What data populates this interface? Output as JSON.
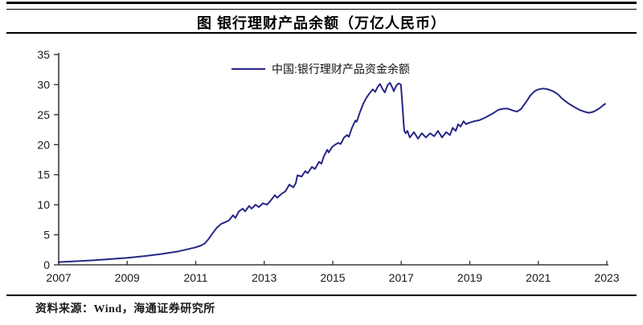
{
  "header": {
    "title": "图 银行理财产品余额（万亿人民币）"
  },
  "legend": {
    "label": "中国:银行理财产品资金余额"
  },
  "source": {
    "text": "资料来源：Wind，海通证券研究所"
  },
  "colors": {
    "series_line": "#262687",
    "axis": "#3a3a3a",
    "tick_label": "#1a1a1a"
  },
  "chart_data": {
    "type": "line",
    "title": "图 银行理财产品余额（万亿人民币）",
    "unit": "万亿人民币",
    "xlabel": "",
    "ylabel": "",
    "xlim": [
      2007,
      2023
    ],
    "ylim": [
      0,
      35
    ],
    "x_ticks": [
      "2007",
      "2009",
      "2011",
      "2013",
      "2015",
      "2017",
      "2019",
      "2021",
      "2023"
    ],
    "x_tick_values": [
      2007,
      2009,
      2011,
      2013,
      2015,
      2017,
      2019,
      2021,
      2023
    ],
    "y_ticks": [
      "0",
      "5",
      "10",
      "15",
      "20",
      "25",
      "30",
      "35"
    ],
    "y_tick_values": [
      0,
      5,
      10,
      15,
      20,
      25,
      30,
      35
    ],
    "grid": false,
    "legend_position": "top-center",
    "series": [
      {
        "name": "中国:银行理财产品资金余额",
        "color": "#262687",
        "points": [
          [
            2007.0,
            0.45
          ],
          [
            2007.52,
            0.6
          ],
          [
            2008.01,
            0.75
          ],
          [
            2008.5,
            0.95
          ],
          [
            2008.99,
            1.15
          ],
          [
            2009.51,
            1.45
          ],
          [
            2010.0,
            1.8
          ],
          [
            2010.5,
            2.25
          ],
          [
            2010.99,
            2.9
          ],
          [
            2011.15,
            3.2
          ],
          [
            2011.27,
            3.6
          ],
          [
            2011.39,
            4.4
          ],
          [
            2011.5,
            5.3
          ],
          [
            2011.62,
            6.2
          ],
          [
            2011.74,
            6.8
          ],
          [
            2011.86,
            7.1
          ],
          [
            2011.97,
            7.4
          ],
          [
            2012.09,
            8.25
          ],
          [
            2012.16,
            7.8
          ],
          [
            2012.26,
            8.9
          ],
          [
            2012.37,
            9.35
          ],
          [
            2012.44,
            8.9
          ],
          [
            2012.56,
            9.8
          ],
          [
            2012.63,
            9.35
          ],
          [
            2012.75,
            10.0
          ],
          [
            2012.84,
            9.6
          ],
          [
            2012.96,
            10.25
          ],
          [
            2013.08,
            10.0
          ],
          [
            2013.19,
            10.7
          ],
          [
            2013.31,
            11.6
          ],
          [
            2013.38,
            11.15
          ],
          [
            2013.5,
            11.8
          ],
          [
            2013.62,
            12.25
          ],
          [
            2013.73,
            13.35
          ],
          [
            2013.85,
            12.9
          ],
          [
            2013.92,
            13.6
          ],
          [
            2013.97,
            14.9
          ],
          [
            2014.09,
            14.7
          ],
          [
            2014.2,
            15.6
          ],
          [
            2014.27,
            15.25
          ],
          [
            2014.39,
            16.3
          ],
          [
            2014.48,
            15.95
          ],
          [
            2014.6,
            17.15
          ],
          [
            2014.67,
            16.85
          ],
          [
            2014.74,
            18.05
          ],
          [
            2014.84,
            19.15
          ],
          [
            2014.88,
            18.7
          ],
          [
            2014.98,
            19.6
          ],
          [
            2015.07,
            20.0
          ],
          [
            2015.16,
            20.3
          ],
          [
            2015.23,
            20.1
          ],
          [
            2015.33,
            21.2
          ],
          [
            2015.42,
            21.6
          ],
          [
            2015.47,
            21.3
          ],
          [
            2015.56,
            22.8
          ],
          [
            2015.66,
            24.0
          ],
          [
            2015.7,
            23.8
          ],
          [
            2015.8,
            25.5
          ],
          [
            2015.89,
            26.8
          ],
          [
            2015.98,
            27.8
          ],
          [
            2016.08,
            28.6
          ],
          [
            2016.17,
            29.2
          ],
          [
            2016.24,
            28.8
          ],
          [
            2016.31,
            29.6
          ],
          [
            2016.38,
            30.1
          ],
          [
            2016.45,
            29.3
          ],
          [
            2016.52,
            28.7
          ],
          [
            2016.6,
            29.9
          ],
          [
            2016.67,
            30.3
          ],
          [
            2016.74,
            29.5
          ],
          [
            2016.78,
            28.9
          ],
          [
            2016.85,
            29.8
          ],
          [
            2016.92,
            30.2
          ],
          [
            2016.99,
            30.0
          ],
          [
            2017.04,
            26.0
          ],
          [
            2017.07,
            23.5
          ],
          [
            2017.09,
            22.3
          ],
          [
            2017.13,
            21.9
          ],
          [
            2017.18,
            22.3
          ],
          [
            2017.25,
            21.2
          ],
          [
            2017.37,
            22.1
          ],
          [
            2017.49,
            21.0
          ],
          [
            2017.6,
            21.9
          ],
          [
            2017.72,
            21.2
          ],
          [
            2017.84,
            21.9
          ],
          [
            2017.96,
            21.4
          ],
          [
            2018.07,
            22.3
          ],
          [
            2018.19,
            21.2
          ],
          [
            2018.31,
            22.1
          ],
          [
            2018.42,
            21.6
          ],
          [
            2018.5,
            22.8
          ],
          [
            2018.59,
            22.3
          ],
          [
            2018.66,
            23.4
          ],
          [
            2018.73,
            23.0
          ],
          [
            2018.82,
            23.9
          ],
          [
            2018.89,
            23.4
          ],
          [
            2018.96,
            23.6
          ],
          [
            2019.13,
            23.9
          ],
          [
            2019.29,
            24.1
          ],
          [
            2019.48,
            24.6
          ],
          [
            2019.67,
            25.2
          ],
          [
            2019.83,
            25.8
          ],
          [
            2020.0,
            26.0
          ],
          [
            2020.11,
            26.0
          ],
          [
            2020.25,
            25.7
          ],
          [
            2020.37,
            25.5
          ],
          [
            2020.49,
            25.9
          ],
          [
            2020.63,
            27.0
          ],
          [
            2020.77,
            28.2
          ],
          [
            2020.89,
            28.9
          ],
          [
            2021.0,
            29.2
          ],
          [
            2021.15,
            29.35
          ],
          [
            2021.29,
            29.2
          ],
          [
            2021.43,
            28.9
          ],
          [
            2021.57,
            28.4
          ],
          [
            2021.71,
            27.6
          ],
          [
            2021.87,
            26.9
          ],
          [
            2022.04,
            26.3
          ],
          [
            2022.2,
            25.8
          ],
          [
            2022.34,
            25.5
          ],
          [
            2022.48,
            25.3
          ],
          [
            2022.62,
            25.5
          ],
          [
            2022.77,
            26.0
          ],
          [
            2022.88,
            26.5
          ],
          [
            2022.95,
            26.8
          ]
        ]
      }
    ]
  }
}
